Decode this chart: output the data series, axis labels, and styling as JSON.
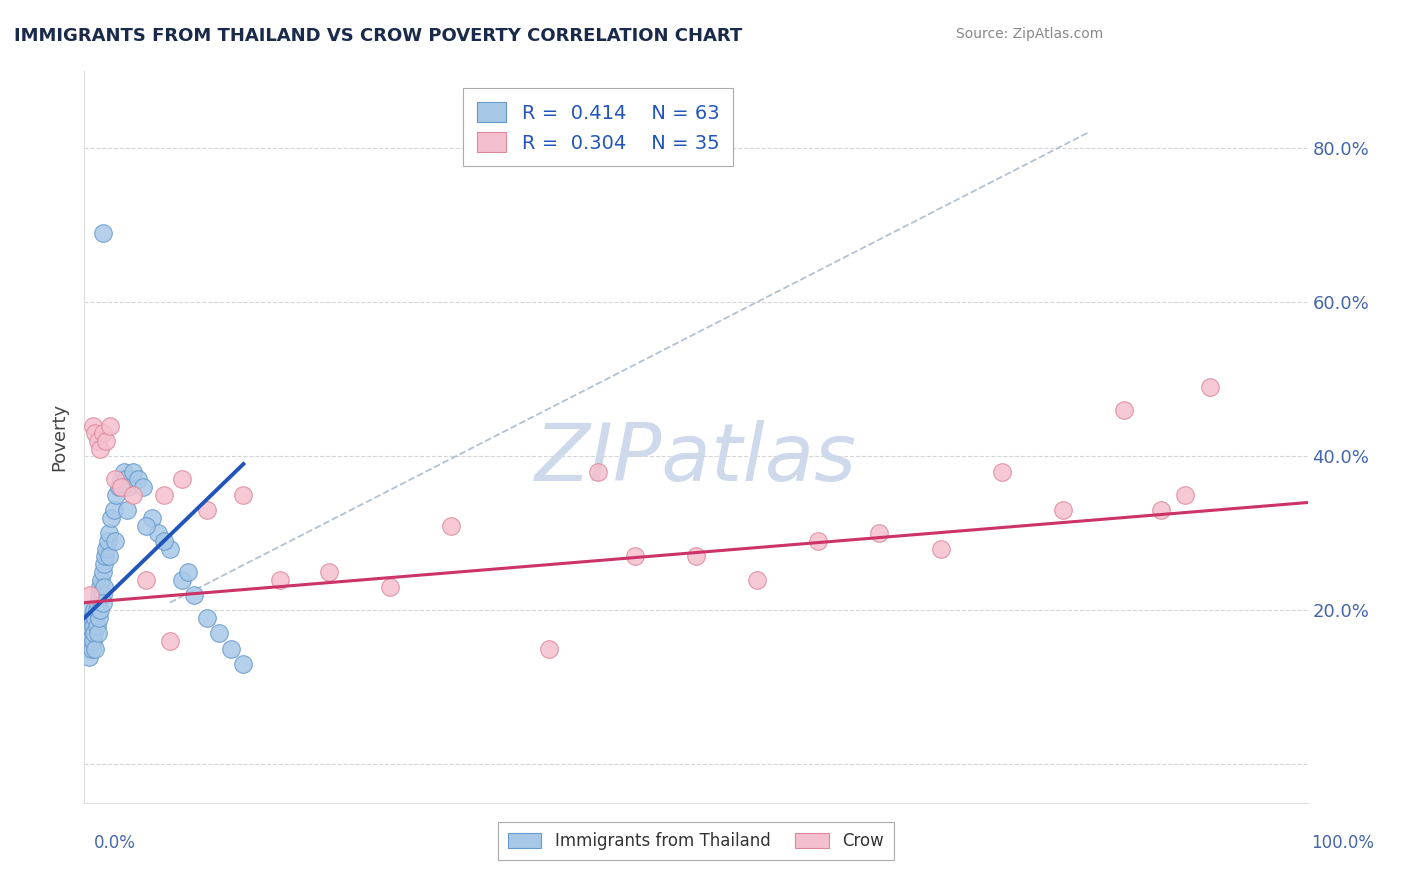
{
  "title": "IMMIGRANTS FROM THAILAND VS CROW POVERTY CORRELATION CHART",
  "source": "Source: ZipAtlas.com",
  "ylabel": "Poverty",
  "ytick_positions": [
    0.0,
    0.2,
    0.4,
    0.6,
    0.8
  ],
  "ytick_labels": [
    "",
    "20.0%",
    "40.0%",
    "60.0%",
    "80.0%"
  ],
  "xlim": [
    0.0,
    1.0
  ],
  "ylim": [
    -0.05,
    0.9
  ],
  "legend_R1": "0.414",
  "legend_N1": "63",
  "legend_R2": "0.304",
  "legend_N2": "35",
  "color_blue_fill": "#a8c8e8",
  "color_blue_edge": "#6699cc",
  "color_pink_fill": "#f5c0ce",
  "color_pink_edge": "#dd8899",
  "color_blue_line": "#2255bb",
  "color_pink_line": "#cc3366",
  "color_dashed": "#aabbcc",
  "watermark_color": "#ccd8ea",
  "background_color": "#ffffff",
  "grid_color": "#cccccc",
  "title_color": "#1a2a4a",
  "yaxis_label_color": "#4466aa",
  "source_color": "#888888",
  "blue_scatter_x": [
    0.001,
    0.002,
    0.002,
    0.003,
    0.003,
    0.004,
    0.004,
    0.005,
    0.005,
    0.005,
    0.006,
    0.006,
    0.007,
    0.007,
    0.008,
    0.008,
    0.009,
    0.009,
    0.01,
    0.01,
    0.011,
    0.011,
    0.012,
    0.012,
    0.013,
    0.013,
    0.014,
    0.015,
    0.015,
    0.016,
    0.016,
    0.017,
    0.018,
    0.019,
    0.02,
    0.02,
    0.022,
    0.024,
    0.026,
    0.028,
    0.03,
    0.032,
    0.034,
    0.036,
    0.04,
    0.044,
    0.048,
    0.055,
    0.06,
    0.07,
    0.08,
    0.09,
    0.1,
    0.11,
    0.12,
    0.13,
    0.015,
    0.025,
    0.035,
    0.05,
    0.065,
    0.085,
    0.015
  ],
  "blue_scatter_y": [
    0.17,
    0.18,
    0.15,
    0.19,
    0.16,
    0.17,
    0.14,
    0.2,
    0.18,
    0.16,
    0.19,
    0.15,
    0.18,
    0.16,
    0.2,
    0.17,
    0.19,
    0.15,
    0.2,
    0.18,
    0.21,
    0.17,
    0.22,
    0.19,
    0.23,
    0.2,
    0.24,
    0.25,
    0.22,
    0.26,
    0.23,
    0.27,
    0.28,
    0.29,
    0.3,
    0.27,
    0.32,
    0.33,
    0.35,
    0.36,
    0.37,
    0.38,
    0.37,
    0.36,
    0.38,
    0.37,
    0.36,
    0.32,
    0.3,
    0.28,
    0.24,
    0.22,
    0.19,
    0.17,
    0.15,
    0.13,
    0.21,
    0.29,
    0.33,
    0.31,
    0.29,
    0.25,
    0.69
  ],
  "pink_scatter_x": [
    0.005,
    0.007,
    0.009,
    0.011,
    0.013,
    0.015,
    0.018,
    0.021,
    0.025,
    0.03,
    0.04,
    0.05,
    0.065,
    0.08,
    0.1,
    0.13,
    0.16,
    0.2,
    0.25,
    0.3,
    0.38,
    0.42,
    0.5,
    0.55,
    0.6,
    0.65,
    0.7,
    0.75,
    0.8,
    0.85,
    0.88,
    0.9,
    0.92,
    0.07,
    0.45
  ],
  "pink_scatter_y": [
    0.22,
    0.44,
    0.43,
    0.42,
    0.41,
    0.43,
    0.42,
    0.44,
    0.37,
    0.36,
    0.35,
    0.24,
    0.35,
    0.37,
    0.33,
    0.35,
    0.24,
    0.25,
    0.23,
    0.31,
    0.15,
    0.38,
    0.27,
    0.24,
    0.29,
    0.3,
    0.28,
    0.38,
    0.33,
    0.46,
    0.33,
    0.35,
    0.49,
    0.16,
    0.27
  ],
  "blue_trendline": [
    [
      0.0,
      0.19
    ],
    [
      0.13,
      0.39
    ]
  ],
  "pink_trendline": [
    [
      0.0,
      0.21
    ],
    [
      1.0,
      0.34
    ]
  ],
  "dashed_line": [
    [
      0.07,
      0.21
    ],
    [
      0.82,
      0.82
    ]
  ]
}
